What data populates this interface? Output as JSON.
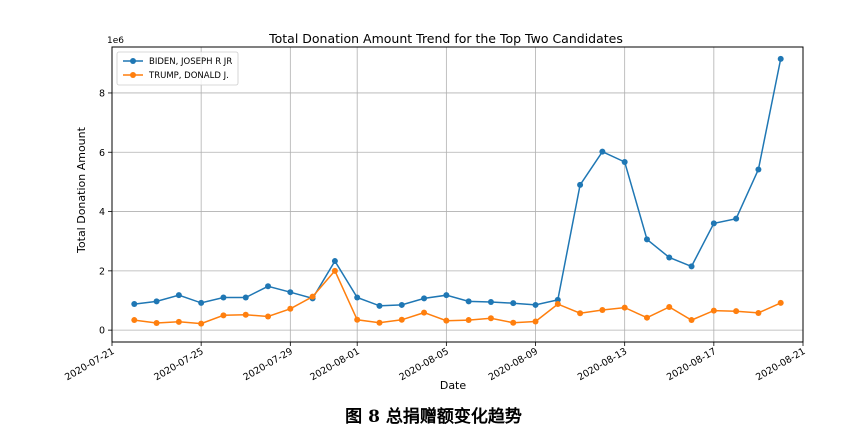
{
  "chart_data": {
    "type": "line",
    "title": "Total Donation Amount Trend for the Top Two Candidates",
    "xlabel": "Date",
    "ylabel": "Total Donation Amount",
    "y_offset_label": "1e6",
    "ylim": [
      -0.4,
      9.55
    ],
    "yticks": [
      0,
      2,
      4,
      6,
      8
    ],
    "ytick_labels": [
      "0",
      "2",
      "4",
      "6",
      "8"
    ],
    "xlim": [
      "2020-07-21",
      "2020-08-21"
    ],
    "xticks": [
      "2020-07-21",
      "2020-07-25",
      "2020-07-29",
      "2020-08-01",
      "2020-08-05",
      "2020-08-09",
      "2020-08-13",
      "2020-08-17",
      "2020-08-21"
    ],
    "x": [
      "2020-07-22",
      "2020-07-23",
      "2020-07-24",
      "2020-07-25",
      "2020-07-26",
      "2020-07-27",
      "2020-07-28",
      "2020-07-29",
      "2020-07-30",
      "2020-07-31",
      "2020-08-01",
      "2020-08-02",
      "2020-08-03",
      "2020-08-04",
      "2020-08-05",
      "2020-08-06",
      "2020-08-07",
      "2020-08-08",
      "2020-08-09",
      "2020-08-10",
      "2020-08-11",
      "2020-08-12",
      "2020-08-13",
      "2020-08-14",
      "2020-08-15",
      "2020-08-16",
      "2020-08-17",
      "2020-08-18",
      "2020-08-19",
      "2020-08-20"
    ],
    "grid": true,
    "legend_position": "upper-left",
    "series": [
      {
        "name": "BIDEN, JOSEPH R JR",
        "color": "#1f77b4",
        "values": [
          0.88,
          0.97,
          1.18,
          0.92,
          1.1,
          1.1,
          1.48,
          1.28,
          1.07,
          2.33,
          1.1,
          0.82,
          0.85,
          1.07,
          1.18,
          0.97,
          0.95,
          0.91,
          0.85,
          1.02,
          4.9,
          6.02,
          5.67,
          3.06,
          2.45,
          2.15,
          3.6,
          3.76,
          5.42,
          9.15
        ]
      },
      {
        "name": "TRUMP, DONALD J.",
        "color": "#ff7f0e",
        "values": [
          0.34,
          0.24,
          0.28,
          0.22,
          0.5,
          0.52,
          0.46,
          0.72,
          1.13,
          2.0,
          0.35,
          0.25,
          0.35,
          0.59,
          0.32,
          0.34,
          0.4,
          0.25,
          0.29,
          0.88,
          0.57,
          0.68,
          0.76,
          0.42,
          0.78,
          0.34,
          0.66,
          0.64,
          0.58,
          0.92
        ]
      }
    ]
  },
  "caption": {
    "label": "图",
    "number": "8",
    "text": "总捐赠额变化趋势"
  }
}
